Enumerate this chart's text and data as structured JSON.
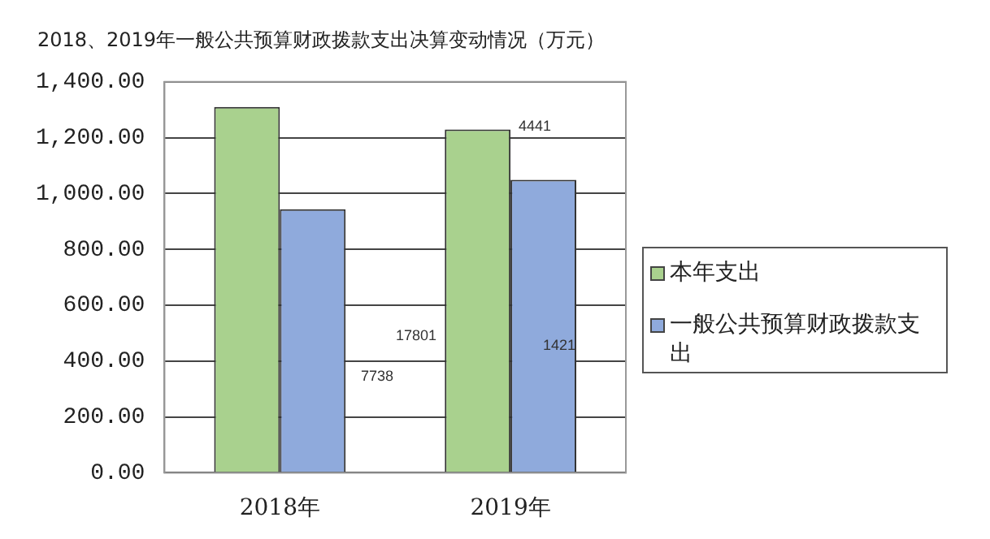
{
  "chart_data": {
    "type": "bar",
    "title": "2018、2019年一般公共预算财政拨款支出决算变动情况（万元）",
    "categories": [
      "2018年",
      "2019年"
    ],
    "series": [
      {
        "name": "本年支出",
        "color": "#a9d18e",
        "values": [
          1310,
          1229
        ]
      },
      {
        "name": "一般公共预算财政拨款支出",
        "color": "#8faadc",
        "values": [
          944,
          1049
        ]
      }
    ],
    "ylim": [
      0,
      1400
    ],
    "yticks": [
      {
        "value": 0,
        "label": "0.00"
      },
      {
        "value": 200,
        "label": "200.00"
      },
      {
        "value": 400,
        "label": "400.00"
      },
      {
        "value": 600,
        "label": "600.00"
      },
      {
        "value": 800,
        "label": "800.00"
      },
      {
        "value": 1000,
        "label": "1,000.00"
      },
      {
        "value": 1200,
        "label": "1,200.00"
      },
      {
        "value": 1400,
        "label": "1,400.00"
      }
    ],
    "grid": "y",
    "legend": "right",
    "annotations": [
      "17801",
      "7738",
      "4441",
      "1421"
    ]
  }
}
